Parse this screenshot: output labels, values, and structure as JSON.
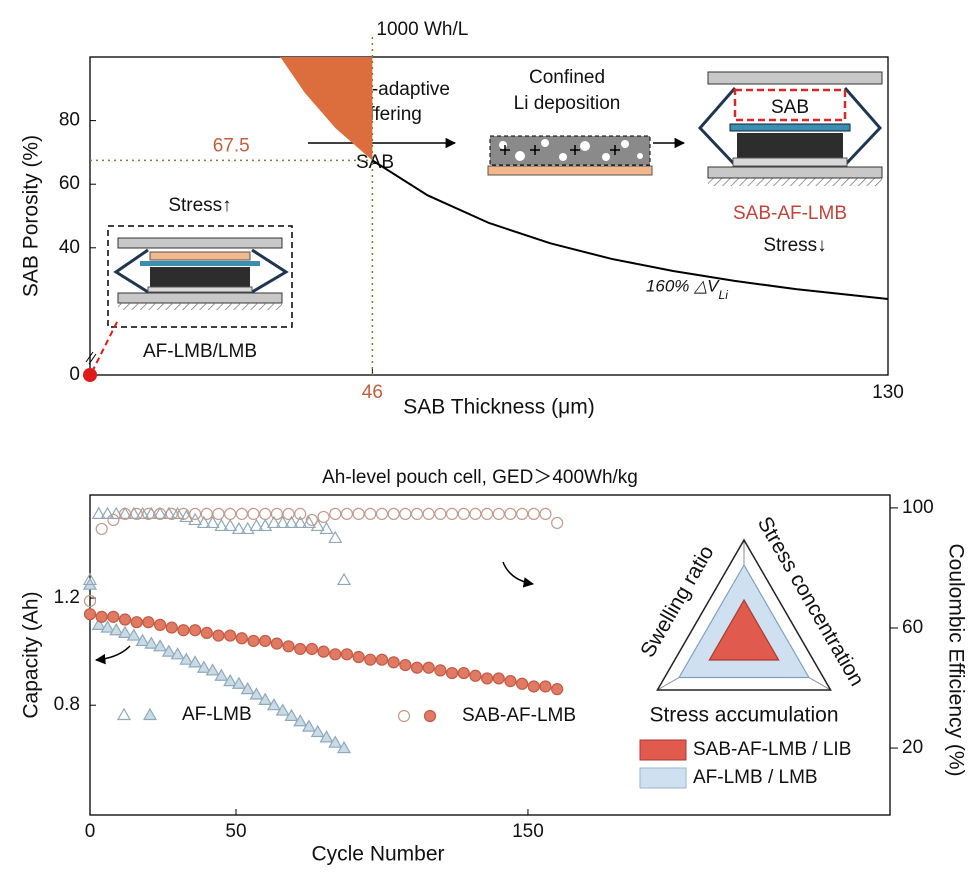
{
  "chart_data": [
    {
      "type": "area-curve",
      "x_label": "SAB Thickness (μm)",
      "y_label": "SAB Porosity (%)",
      "xlim": [
        0,
        130
      ],
      "ylim": [
        0,
        100
      ],
      "xticks": [
        46,
        130
      ],
      "yticks": [
        0,
        40,
        60,
        80
      ],
      "annotation_top": "1000   Wh/L",
      "ref_x": 46,
      "ref_y": 67.5,
      "curve": {
        "x": [
          46,
          55,
          65,
          75,
          85,
          95,
          105,
          115,
          130
        ],
        "values": [
          67.5,
          56.5,
          47.8,
          41.4,
          36.5,
          32.7,
          29.6,
          27.0,
          23.9
        ],
        "color": "#000000",
        "label": "160% △V",
        "label_sub": "Li"
      },
      "region": {
        "x": [
          31,
          35,
          40,
          46
        ],
        "values": [
          100,
          88.7,
          77.6,
          67.5
        ],
        "color": "#dc6e3e"
      },
      "highlight": {
        "x": 0,
        "y": 0,
        "color": "#e0191b"
      },
      "schematic": {
        "buffer_1": "Space-adaptive",
        "buffer_2": "Buffering",
        "arrow_label": "SAB",
        "confined_1": "Confined",
        "confined_2": "Li deposition",
        "cell_layer": "SAB",
        "sab_cell": "SAB-AF-LMB",
        "stress_down": "Stress↓",
        "stress_up": "Stress↑",
        "af_cell": "AF-LMB/LMB"
      }
    },
    {
      "type": "scatter",
      "title": "Ah-level pouch cell, GED＞400Wh/kg",
      "x_label": "Cycle Number",
      "y_label": "Capacity (Ah)",
      "y2_label": "Coulombic Efficiency (%)",
      "xlim": [
        0,
        274
      ],
      "ylim": [
        0.39,
        1.585
      ],
      "y2lim": [
        -2.3,
        104.3
      ],
      "xticks": [
        0,
        50,
        150
      ],
      "yticks": [
        0.8,
        1.2
      ],
      "y2ticks": [
        20,
        60,
        100
      ],
      "series": [
        {
          "name": "AF-LMB",
          "marker": "triangle",
          "filled": true,
          "color": "#c9dbe6",
          "edge": "#8fa9b9",
          "x": [
            0,
            3,
            6,
            9,
            12,
            15,
            18,
            21,
            24,
            27,
            30,
            33,
            36,
            39,
            42,
            45,
            48,
            51,
            54,
            57,
            60,
            63,
            66,
            69,
            72,
            75,
            78,
            81,
            84,
            87
          ],
          "values": [
            1.25,
            1.1,
            1.09,
            1.08,
            1.07,
            1.06,
            1.04,
            1.03,
            1.02,
            1.0,
            0.99,
            0.97,
            0.96,
            0.94,
            0.93,
            0.91,
            0.89,
            0.88,
            0.86,
            0.84,
            0.82,
            0.8,
            0.78,
            0.76,
            0.74,
            0.72,
            0.7,
            0.68,
            0.66,
            0.64
          ]
        },
        {
          "name": "SAB-AF-LMB",
          "marker": "circle",
          "filled": true,
          "color": "#e07a62",
          "edge": "#c45a45",
          "x": [
            0,
            4,
            8,
            12,
            16,
            20,
            24,
            28,
            32,
            36,
            40,
            44,
            48,
            52,
            56,
            60,
            64,
            68,
            72,
            76,
            80,
            84,
            88,
            92,
            96,
            100,
            104,
            108,
            112,
            116,
            120,
            124,
            128,
            132,
            136,
            140,
            144,
            148,
            152,
            156,
            160
          ],
          "values": [
            1.14,
            1.13,
            1.13,
            1.12,
            1.11,
            1.11,
            1.1,
            1.09,
            1.08,
            1.08,
            1.07,
            1.06,
            1.06,
            1.05,
            1.04,
            1.04,
            1.03,
            1.02,
            1.01,
            1.01,
            1.0,
            0.99,
            0.99,
            0.98,
            0.97,
            0.97,
            0.96,
            0.95,
            0.94,
            0.94,
            0.93,
            0.92,
            0.92,
            0.91,
            0.9,
            0.9,
            0.89,
            0.88,
            0.87,
            0.87,
            0.86
          ]
        },
        {
          "marker": "triangle",
          "filled": false,
          "color": "#ffffff",
          "edge": "#8fa9b9",
          "axis": "y2",
          "x": [
            0,
            3,
            6,
            9,
            12,
            15,
            18,
            21,
            24,
            27,
            30,
            33,
            36,
            39,
            42,
            45,
            48,
            51,
            54,
            57,
            60,
            63,
            66,
            69,
            72,
            75,
            78,
            81,
            84,
            87
          ],
          "values": [
            76,
            98,
            98,
            98,
            98,
            98,
            98,
            98,
            98,
            98,
            98,
            97,
            96,
            95,
            95,
            94,
            94,
            93,
            93,
            94,
            94,
            95,
            95,
            95,
            95,
            95,
            94,
            93,
            90,
            76
          ]
        },
        {
          "marker": "circle",
          "filled": false,
          "color": "#ffffff",
          "edge": "#c39a8a",
          "axis": "y2",
          "x": [
            0,
            4,
            8,
            12,
            16,
            20,
            24,
            28,
            32,
            36,
            40,
            44,
            48,
            52,
            56,
            60,
            64,
            68,
            72,
            76,
            80,
            84,
            88,
            92,
            96,
            100,
            104,
            108,
            112,
            116,
            120,
            124,
            128,
            132,
            136,
            140,
            144,
            148,
            152,
            156,
            160
          ],
          "values": [
            69,
            93,
            96,
            98,
            98,
            98,
            98,
            98,
            98,
            98,
            98,
            98,
            98,
            98,
            98,
            98,
            98,
            98,
            98,
            96,
            97,
            98,
            98,
            98,
            98,
            98,
            98,
            98,
            98,
            98,
            98,
            98,
            98,
            98,
            98,
            98,
            98,
            98,
            98,
            98,
            95
          ]
        }
      ]
    },
    {
      "type": "radar",
      "categories": [
        "Swelling ratio",
        "Stress accumulation",
        "Stress concentration"
      ],
      "rlim": [
        0,
        1
      ],
      "series": [
        {
          "name": "SAB-AF-LMB / LIB",
          "color": "#e05a4e",
          "values": [
            0.4,
            0.4,
            0.4
          ]
        },
        {
          "name": "AF-LMB / LMB",
          "color": "#cfe0f1",
          "values": [
            0.75,
            0.75,
            0.75
          ]
        }
      ]
    }
  ]
}
